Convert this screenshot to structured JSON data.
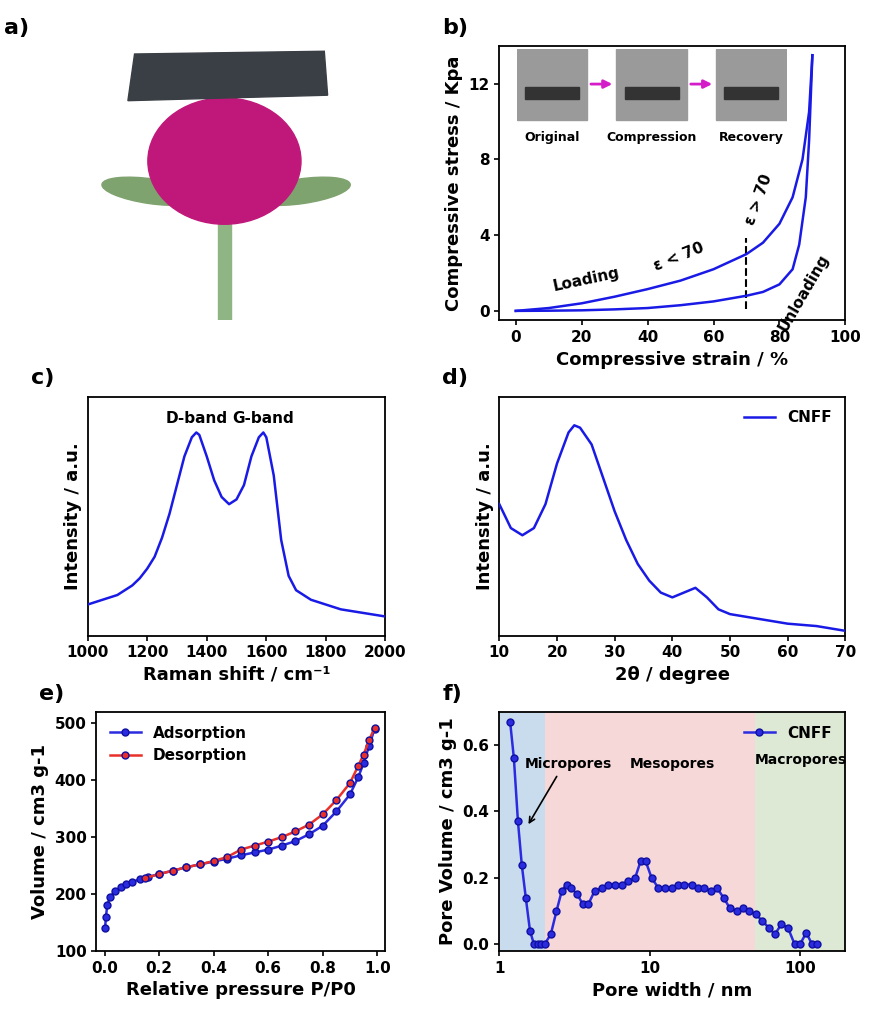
{
  "chart_data": [
    {
      "type": "photo",
      "panel": "a)"
    },
    {
      "type": "line",
      "panel": "b)",
      "x_label": "Compressive strain / %",
      "y_label": "Compressive stress / Kpa",
      "xlim": [
        -5,
        100
      ],
      "xticks": [
        0,
        20,
        40,
        60,
        80,
        100
      ],
      "ylim": [
        -0.5,
        14
      ],
      "yticks": [
        0,
        4,
        8,
        12
      ],
      "series": [
        {
          "color": "#1a1ae6",
          "line_style": "solid",
          "x": [
            0,
            10,
            20,
            30,
            40,
            50,
            60,
            70,
            75,
            80,
            84,
            87,
            89,
            90
          ],
          "values": [
            0,
            0.15,
            0.4,
            0.75,
            1.15,
            1.6,
            2.2,
            3.0,
            3.6,
            4.6,
            6.0,
            8.0,
            10.5,
            13.5
          ]
        },
        {
          "color": "#1a1ae6",
          "line_style": "solid",
          "x": [
            90,
            89,
            88,
            86,
            84,
            80,
            75,
            70,
            60,
            50,
            40,
            30,
            20,
            10,
            0
          ],
          "values": [
            13.5,
            9,
            6,
            3.5,
            2.2,
            1.4,
            1.0,
            0.8,
            0.5,
            0.3,
            0.15,
            0.08,
            0.03,
            0.01,
            0
          ]
        }
      ],
      "reference_line": {
        "x": 70,
        "line_style": "dashed"
      },
      "annotations": [
        "Loading",
        "ε < 70",
        "ε > 70",
        "Unloading"
      ],
      "inset_labels": [
        "Original",
        "Compression",
        "Recovery"
      ]
    },
    {
      "type": "line",
      "panel": "c)",
      "x_label": "Raman shift / cm⁻¹",
      "y_label": "Intensity / a.u.",
      "xlim": [
        1000,
        2000
      ],
      "xticks": [
        1000,
        1200,
        1400,
        1600,
        1800,
        2000
      ],
      "ylim": [
        0.05,
        1.05
      ],
      "tick_labels": "x",
      "series": [
        {
          "color": "#1a1ae6",
          "line_style": "solid",
          "x": [
            1000,
            1025,
            1050,
            1075,
            1100,
            1125,
            1150,
            1175,
            1200,
            1225,
            1250,
            1275,
            1300,
            1325,
            1350,
            1365,
            1375,
            1400,
            1425,
            1450,
            1475,
            1500,
            1525,
            1550,
            1575,
            1590,
            1600,
            1625,
            1650,
            1675,
            1700,
            1750,
            1800,
            1850,
            1900,
            1950,
            2000
          ],
          "values": [
            0.18,
            0.19,
            0.2,
            0.21,
            0.22,
            0.24,
            0.26,
            0.29,
            0.33,
            0.38,
            0.46,
            0.56,
            0.68,
            0.8,
            0.88,
            0.9,
            0.89,
            0.8,
            0.7,
            0.63,
            0.6,
            0.62,
            0.68,
            0.8,
            0.88,
            0.9,
            0.88,
            0.72,
            0.45,
            0.3,
            0.24,
            0.2,
            0.18,
            0.16,
            0.15,
            0.14,
            0.13
          ]
        }
      ],
      "annotations": [
        "D-band",
        "G-band"
      ]
    },
    {
      "type": "line",
      "panel": "d)",
      "x_label": "2θ / degree",
      "y_label": "Intensity / a.u.",
      "xlim": [
        10,
        70
      ],
      "xticks": [
        10,
        20,
        30,
        40,
        50,
        60,
        70
      ],
      "ylim": [
        0,
        1
      ],
      "tick_labels": "x",
      "legend": "upper right",
      "series": [
        {
          "name": "CNFF",
          "color": "#1a1ae6",
          "line_style": "solid",
          "x": [
            10,
            12,
            14,
            16,
            18,
            20,
            22,
            23,
            24,
            26,
            28,
            30,
            32,
            34,
            36,
            38,
            40,
            42,
            44,
            46,
            48,
            50,
            55,
            60,
            65,
            70
          ],
          "values": [
            0.55,
            0.45,
            0.42,
            0.45,
            0.55,
            0.72,
            0.85,
            0.88,
            0.87,
            0.8,
            0.66,
            0.52,
            0.4,
            0.3,
            0.23,
            0.18,
            0.16,
            0.18,
            0.2,
            0.16,
            0.11,
            0.09,
            0.07,
            0.05,
            0.04,
            0.02
          ]
        }
      ]
    },
    {
      "type": "line",
      "panel": "e)",
      "x_label": "Relative pressure P/P0",
      "y_label": "Volume / cm3 g-1",
      "xlim": [
        -0.03,
        1.03
      ],
      "xticks": [
        {
          "value": 0,
          "label": "0.0"
        },
        0.2,
        0.4,
        0.6,
        0.8,
        {
          "value": 1,
          "label": "1.0"
        }
      ],
      "ylim": [
        100,
        520
      ],
      "yticks": [
        100,
        200,
        300,
        400,
        500
      ],
      "legend": "upper left",
      "series": [
        {
          "name": "Adsorption",
          "color": "#2b2be0",
          "marker": "o",
          "line_style": "solid",
          "x": [
            0.002,
            0.005,
            0.01,
            0.02,
            0.04,
            0.06,
            0.08,
            0.1,
            0.13,
            0.16,
            0.2,
            0.25,
            0.3,
            0.35,
            0.4,
            0.45,
            0.5,
            0.55,
            0.6,
            0.65,
            0.7,
            0.75,
            0.8,
            0.85,
            0.9,
            0.93,
            0.95,
            0.97,
            0.99
          ],
          "values": [
            140,
            160,
            180,
            195,
            205,
            212,
            217,
            221,
            226,
            230,
            235,
            241,
            247,
            252,
            257,
            262,
            268,
            273,
            278,
            285,
            293,
            305,
            320,
            345,
            375,
            405,
            430,
            460,
            490
          ]
        },
        {
          "name": "Desorption",
          "color": "#e8312a",
          "marker": "o",
          "line_style": "solid",
          "x": [
            0.99,
            0.97,
            0.95,
            0.93,
            0.9,
            0.85,
            0.8,
            0.75,
            0.7,
            0.65,
            0.6,
            0.55,
            0.5,
            0.45,
            0.4,
            0.35,
            0.3,
            0.25,
            0.2,
            0.15
          ],
          "values": [
            492,
            470,
            445,
            425,
            395,
            365,
            340,
            322,
            310,
            300,
            292,
            285,
            278,
            265,
            258,
            252,
            247,
            241,
            235,
            228
          ]
        }
      ]
    },
    {
      "type": "line",
      "panel": "f)",
      "log": "x",
      "x_label": "Pore width / nm",
      "y_label": "Pore Volume / cm3 g-1",
      "xlim": [
        1,
        200
      ],
      "xticks": [
        1,
        10,
        100
      ],
      "ylim": [
        -0.02,
        0.7
      ],
      "yticks": [
        {
          "value": 0,
          "label": "0.0"
        },
        0.2,
        0.4,
        0.6
      ],
      "legend": "upper right",
      "regions": [
        {
          "name": "Micropores",
          "from": 1,
          "to": 2,
          "color": "#c9dcee"
        },
        {
          "name": "Mesopores",
          "from": 2,
          "to": 50,
          "color": "#f6d8d8"
        },
        {
          "name": "Macropores",
          "from": 50,
          "to": 200,
          "color": "#dde8d5"
        }
      ],
      "series": [
        {
          "name": "CNFF",
          "color": "#2b2be0",
          "marker": "o",
          "line_style": "solid",
          "x": [
            1.18,
            1.25,
            1.33,
            1.41,
            1.5,
            1.6,
            1.7,
            1.8,
            1.9,
            2.0,
            2.2,
            2.4,
            2.6,
            2.8,
            3.0,
            3.3,
            3.6,
            3.9,
            4.3,
            4.8,
            5.3,
            5.9,
            6.5,
            7.2,
            8.0,
            8.7,
            9.4,
            10.3,
            11.4,
            12.6,
            14,
            15.5,
            17,
            19,
            21,
            23,
            25.5,
            28,
            31,
            34,
            38,
            42,
            46,
            51,
            56,
            62,
            68,
            75,
            83,
            92,
            100,
            110,
            120,
            130
          ],
          "values": [
            0.67,
            0.56,
            0.37,
            0.24,
            0.14,
            0.04,
            0.0,
            0.0,
            0.0,
            0.0,
            0.03,
            0.1,
            0.16,
            0.18,
            0.17,
            0.15,
            0.12,
            0.12,
            0.16,
            0.17,
            0.18,
            0.18,
            0.18,
            0.19,
            0.2,
            0.25,
            0.25,
            0.2,
            0.17,
            0.17,
            0.17,
            0.18,
            0.18,
            0.18,
            0.17,
            0.17,
            0.16,
            0.17,
            0.14,
            0.11,
            0.1,
            0.11,
            0.1,
            0.09,
            0.07,
            0.05,
            0.03,
            0.06,
            0.05,
            0.0,
            0.0,
            0.035,
            0.0,
            0.0
          ]
        }
      ]
    }
  ]
}
